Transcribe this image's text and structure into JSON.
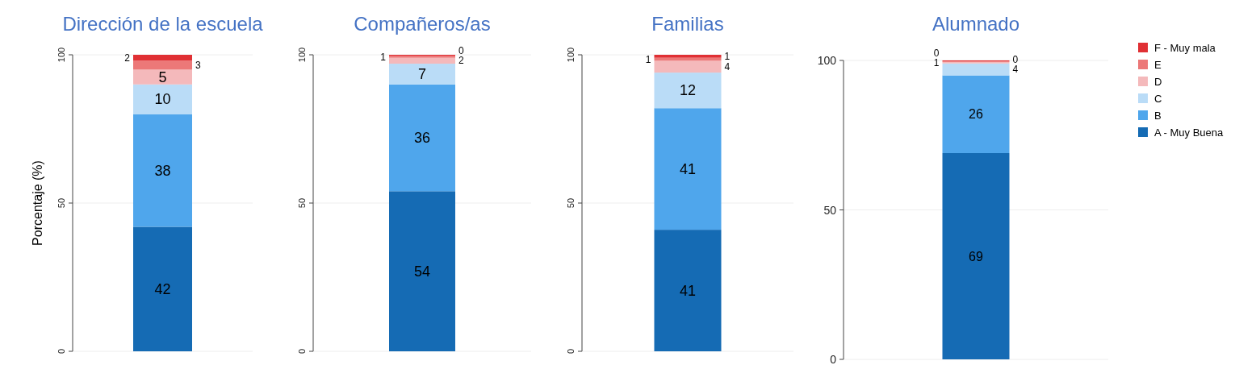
{
  "chart_data": [
    {
      "type": "bar",
      "title": "Dirección de la escuela",
      "ylabel": "Porcentaje (%)",
      "categories": [
        null
      ],
      "stacked": true,
      "ylim": [
        0,
        100
      ],
      "yticks": [
        0,
        50,
        100
      ],
      "grid": "y",
      "data_labels": true,
      "series": [
        {
          "color": "#156bb4",
          "values": [
            42
          ]
        },
        {
          "color": "#4fa6ec",
          "values": [
            38
          ]
        },
        {
          "color": "#badcf7",
          "values": [
            10
          ]
        },
        {
          "color": "#f4b9bb",
          "values": [
            5
          ]
        },
        {
          "color": "#ec7878",
          "values": [
            3
          ]
        },
        {
          "color": "#e03034",
          "values": [
            2
          ]
        }
      ]
    },
    {
      "type": "bar",
      "title": "Compañeros/as",
      "categories": [
        null
      ],
      "stacked": true,
      "ylim": [
        0,
        100
      ],
      "yticks": [
        0,
        50,
        100
      ],
      "grid": "y",
      "series": [
        {
          "color": "#156bb4",
          "values": [
            54
          ],
          "value_labels": [
            "54"
          ]
        },
        {
          "color": "#4fa6ec",
          "values": [
            36
          ],
          "value_labels": [
            "36"
          ]
        },
        {
          "color": "#badcf7",
          "values": [
            7
          ],
          "value_labels": [
            "7"
          ]
        },
        {
          "color": "#f4b9bb",
          "values": [
            2
          ],
          "value_labels": [
            "2"
          ]
        },
        {
          "color": "#ec7878",
          "values": [
            0.6
          ],
          "value_labels": [
            "1"
          ]
        },
        {
          "color": "#e03034",
          "values": [
            0.4
          ],
          "value_labels": [
            "0"
          ]
        }
      ]
    },
    {
      "type": "bar",
      "title": "Familias",
      "categories": [
        null
      ],
      "stacked": true,
      "ylim": [
        0,
        100
      ],
      "yticks": [
        0,
        50,
        100
      ],
      "grid": "y",
      "data_labels": true,
      "series": [
        {
          "color": "#156bb4",
          "values": [
            41
          ]
        },
        {
          "color": "#4fa6ec",
          "values": [
            41
          ]
        },
        {
          "color": "#badcf7",
          "values": [
            12
          ]
        },
        {
          "color": "#f4b9bb",
          "values": [
            4
          ]
        },
        {
          "color": "#ec7878",
          "values": [
            1
          ]
        },
        {
          "color": "#e03034",
          "values": [
            1
          ]
        }
      ]
    },
    {
      "type": "bar",
      "title": "Alumnado",
      "categories": [
        null
      ],
      "stacked": true,
      "ylim": [
        0,
        100
      ],
      "yticks": [
        0,
        50,
        100
      ],
      "grid": "y",
      "legend": "right",
      "series": [
        {
          "name": "A - Muy Buena",
          "color": "#156bb4",
          "values": [
            69
          ],
          "value_labels": [
            "69"
          ]
        },
        {
          "name": "B",
          "color": "#4fa6ec",
          "values": [
            26
          ],
          "value_labels": [
            "26"
          ]
        },
        {
          "name": "C",
          "color": "#badcf7",
          "values": [
            4
          ],
          "value_labels": [
            "4"
          ]
        },
        {
          "name": "D",
          "color": "#f4b9bb",
          "values": [
            0.5
          ],
          "value_labels": [
            "1"
          ]
        },
        {
          "name": "E",
          "color": "#ec7878",
          "values": [
            0.2
          ],
          "value_labels": [
            "0"
          ]
        },
        {
          "name": "F - Muy mala",
          "color": "#e03034",
          "values": [
            0.3
          ],
          "value_labels": [
            "0"
          ]
        }
      ]
    }
  ]
}
